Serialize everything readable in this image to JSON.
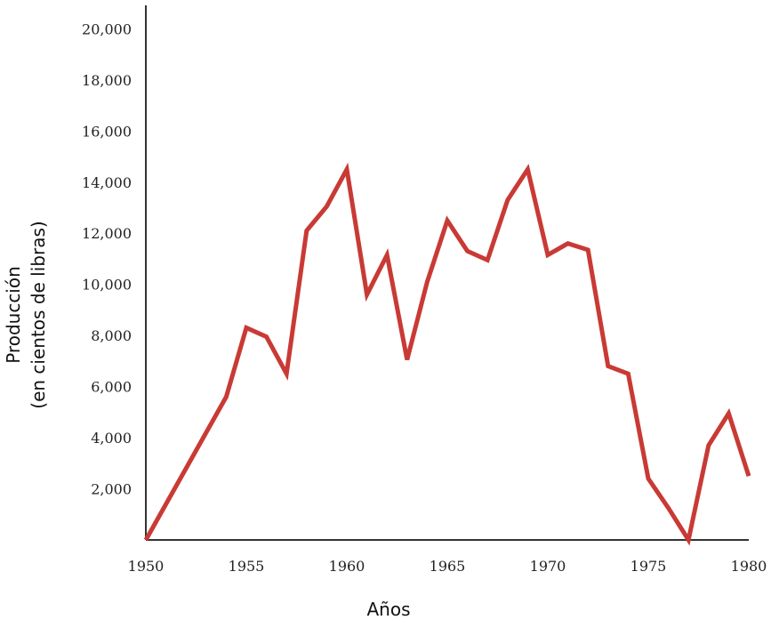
{
  "chart_data": {
    "type": "line",
    "title": "",
    "xlabel": "Años",
    "ylabel_line1": "Producción",
    "ylabel_line2": "(en cientos de libras)",
    "x_ticks": [
      "1950",
      "1955",
      "1960",
      "1965",
      "1970",
      "1975",
      "1980"
    ],
    "y_ticks": [
      "2,000",
      "4,000",
      "6,000",
      "8,000",
      "10,000",
      "12,000",
      "14,000",
      "16,000",
      "18,000",
      "20,000"
    ],
    "xlim": [
      1950,
      1980
    ],
    "ylim": [
      0,
      20500
    ],
    "grid": false,
    "legend": "none",
    "series": [
      {
        "color": "#c93a35",
        "x": [
          1950,
          1954,
          1955,
          1956,
          1957,
          1958,
          1959,
          1960,
          1961,
          1962,
          1963,
          1964,
          1965,
          1966,
          1967,
          1968,
          1969,
          1970,
          1971,
          1972,
          1973,
          1974,
          1975,
          1976,
          1977,
          1978,
          1979,
          1980
        ],
        "y": [
          0,
          5600,
          8300,
          7950,
          6500,
          12100,
          13050,
          14500,
          9600,
          11150,
          7050,
          10100,
          12500,
          11300,
          10950,
          13300,
          14500,
          11150,
          11600,
          11350,
          6800,
          6500,
          2400,
          1250,
          0,
          3700,
          4950,
          2500
        ]
      }
    ]
  }
}
